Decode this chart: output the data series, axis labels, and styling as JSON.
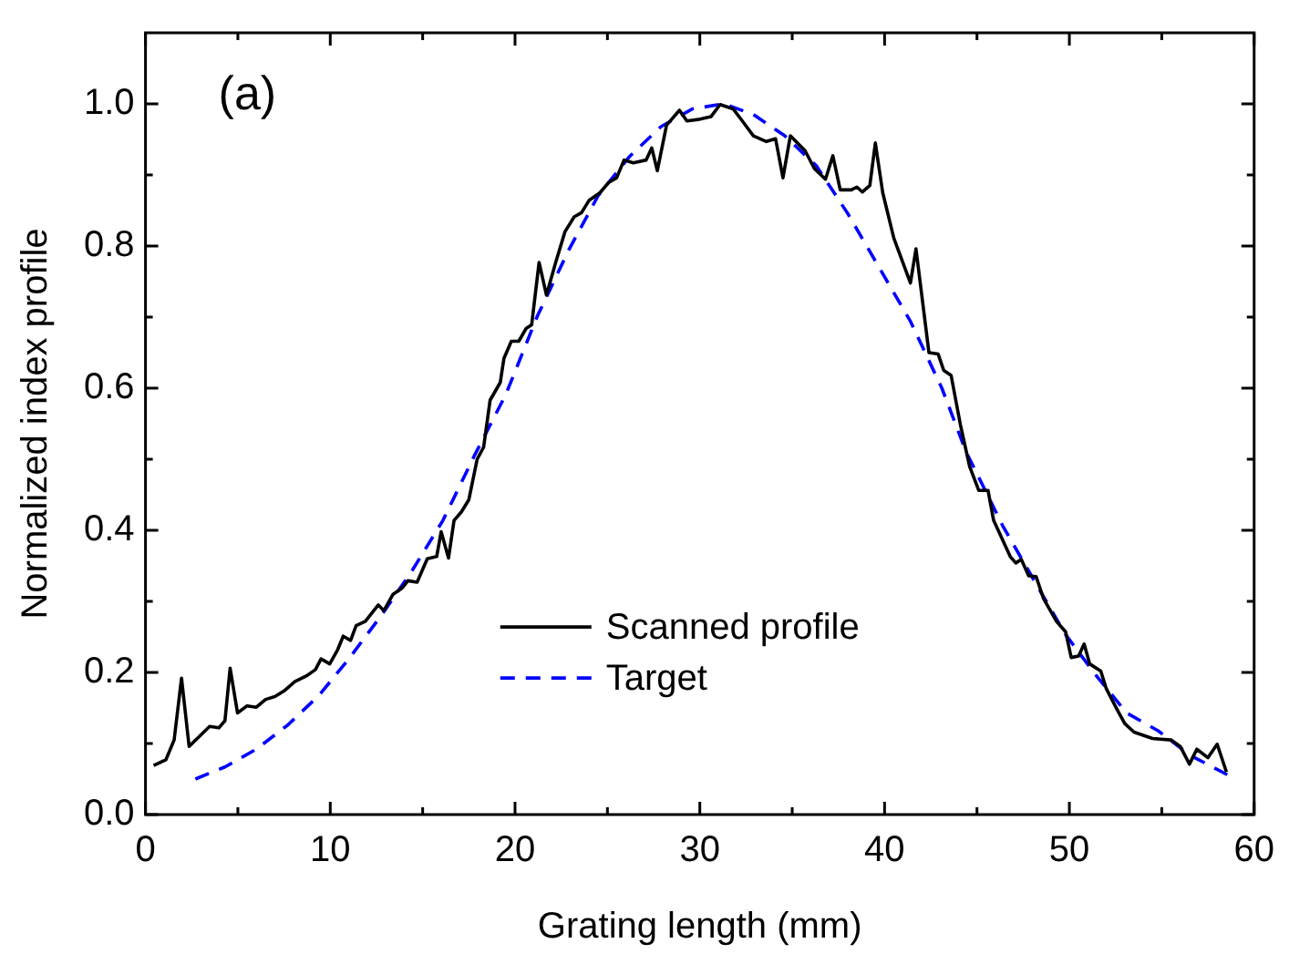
{
  "chart_data": {
    "type": "line",
    "xlabel": "Grating length (mm)",
    "ylabel": "Normalized index profile",
    "annotations": [
      "(a)"
    ],
    "legend": "bottom",
    "grid": false,
    "xlim": [
      0,
      60
    ],
    "xticks": [
      0,
      {
        "value": 5,
        "label": null
      },
      10,
      {
        "value": 15,
        "label": null
      },
      20,
      {
        "value": 25,
        "label": null
      },
      30,
      {
        "value": 35,
        "label": null
      },
      40,
      {
        "value": 45,
        "label": null
      },
      50,
      {
        "value": 55,
        "label": null
      },
      60
    ],
    "ylim": [
      0,
      1.1
    ],
    "yticks": [
      {
        "value": 0,
        "label": "0.0"
      },
      {
        "value": 0.1,
        "label": null
      },
      0.2,
      {
        "value": 0.3,
        "label": null
      },
      0.4,
      {
        "value": 0.5,
        "label": null
      },
      0.6,
      {
        "value": 0.7,
        "label": null
      },
      0.8,
      {
        "value": 0.9,
        "label": null
      },
      {
        "value": 1,
        "label": "1.0"
      }
    ],
    "series": [
      {
        "name": "Scanned profile",
        "color": "#000000",
        "line_style": "solid",
        "x": [
          0.44,
          1.1,
          1.55,
          1.95,
          2.36,
          2.8,
          3.47,
          3.97,
          4.3,
          4.58,
          4.98,
          5.5,
          6.0,
          6.5,
          7.0,
          7.5,
          8.08,
          8.7,
          9.2,
          9.5,
          9.97,
          10.4,
          10.7,
          11.1,
          11.4,
          11.9,
          12.6,
          12.9,
          13.4,
          13.9,
          14.2,
          14.7,
          15.25,
          15.76,
          16.0,
          16.4,
          16.7,
          17.1,
          17.5,
          17.95,
          18.3,
          18.65,
          19.2,
          19.4,
          19.8,
          20.2,
          20.6,
          20.9,
          21.3,
          21.7,
          22.2,
          22.7,
          23.2,
          23.6,
          24.0,
          24.6,
          25.05,
          25.5,
          25.9,
          26.4,
          27.1,
          27.4,
          27.7,
          28.2,
          28.9,
          29.3,
          29.9,
          30.6,
          31.1,
          31.8,
          32.3,
          32.9,
          33.6,
          34.1,
          34.5,
          34.9,
          35.7,
          36.2,
          36.8,
          37.2,
          37.6,
          38.2,
          38.5,
          38.8,
          39.2,
          39.5,
          39.9,
          40.5,
          41.4,
          41.7,
          42.4,
          42.9,
          43.2,
          43.6,
          44.1,
          44.6,
          45.1,
          45.6,
          45.9,
          46.8,
          47.1,
          47.4,
          47.8,
          48.2,
          48.6,
          49.3,
          49.8,
          50.1,
          50.5,
          50.8,
          51.1,
          51.7,
          52.0,
          52.6,
          53.0,
          53.5,
          54.5,
          55.5,
          56.0,
          56.5,
          56.9,
          57.5,
          58.0,
          58.5
        ],
        "values": [
          0.069,
          0.077,
          0.105,
          0.192,
          0.096,
          0.107,
          0.124,
          0.122,
          0.132,
          0.206,
          0.143,
          0.153,
          0.151,
          0.162,
          0.166,
          0.174,
          0.187,
          0.195,
          0.204,
          0.219,
          0.212,
          0.232,
          0.251,
          0.245,
          0.266,
          0.272,
          0.295,
          0.287,
          0.31,
          0.319,
          0.329,
          0.327,
          0.36,
          0.363,
          0.398,
          0.361,
          0.414,
          0.426,
          0.443,
          0.5,
          0.517,
          0.583,
          0.608,
          0.642,
          0.666,
          0.666,
          0.684,
          0.689,
          0.777,
          0.731,
          0.777,
          0.82,
          0.841,
          0.847,
          0.864,
          0.875,
          0.889,
          0.896,
          0.921,
          0.917,
          0.921,
          0.938,
          0.906,
          0.97,
          0.991,
          0.976,
          0.978,
          0.982,
          0.999,
          0.993,
          0.976,
          0.955,
          0.947,
          0.951,
          0.896,
          0.955,
          0.934,
          0.909,
          0.894,
          0.927,
          0.879,
          0.879,
          0.883,
          0.876,
          0.885,
          0.945,
          0.875,
          0.811,
          0.748,
          0.796,
          0.65,
          0.648,
          0.625,
          0.618,
          0.549,
          0.49,
          0.456,
          0.456,
          0.414,
          0.363,
          0.354,
          0.359,
          0.336,
          0.335,
          0.304,
          0.272,
          0.257,
          0.221,
          0.223,
          0.24,
          0.212,
          0.202,
          0.177,
          0.147,
          0.128,
          0.116,
          0.107,
          0.105,
          0.096,
          0.071,
          0.092,
          0.08,
          0.099,
          0.06
        ]
      },
      {
        "name": "Target",
        "color": "#0000ff",
        "line_style": "dashed",
        "x": [
          2.7,
          4.3,
          6.0,
          7.7,
          9.4,
          11.0,
          12.7,
          14.4,
          16.1,
          17.8,
          19.5,
          21.2,
          22.9,
          24.5,
          26.2,
          27.9,
          29.6,
          31.3,
          32.9,
          34.6,
          36.3,
          38.0,
          39.7,
          41.4,
          43.1,
          44.4,
          46.4,
          48.1,
          49.8,
          51.5,
          53.1,
          54.8,
          56.5,
          58.7
        ],
        "values": [
          0.05,
          0.067,
          0.092,
          0.126,
          0.168,
          0.219,
          0.278,
          0.342,
          0.414,
          0.505,
          0.591,
          0.701,
          0.794,
          0.871,
          0.926,
          0.968,
          0.993,
          1.0,
          0.985,
          0.955,
          0.913,
          0.846,
          0.77,
          0.694,
          0.6,
          0.511,
          0.406,
          0.329,
          0.253,
          0.194,
          0.143,
          0.118,
          0.084,
          0.054
        ]
      }
    ]
  }
}
